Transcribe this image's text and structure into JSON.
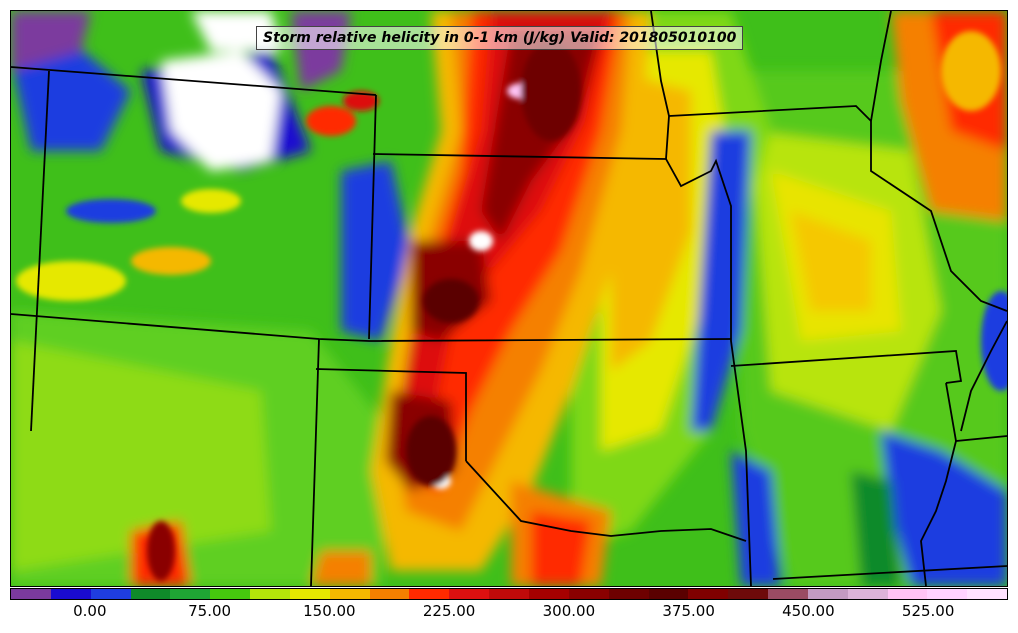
{
  "title": "Storm relative helicity in 0-1 km (J/kg) Valid: 201805010100",
  "colorbar": {
    "colors": [
      "#7b3a9e",
      "#1a0bd0",
      "#1f3de0",
      "#0f8a2a",
      "#1fa534",
      "#46c80e",
      "#b4e40a",
      "#e6e800",
      "#f5b800",
      "#f58000",
      "#ff2a00",
      "#dd1010",
      "#c00a0a",
      "#a50000",
      "#8a0000",
      "#6e0000",
      "#5a0000",
      "#800000",
      "#6e0a0a",
      "#9a4b63",
      "#c49ac2",
      "#ddb3d9",
      "#ffc4f5",
      "#ffd2ff",
      "#ffe2ff"
    ],
    "tick_labels": [
      {
        "label": "0.00",
        "value": 0
      },
      {
        "label": "75.00",
        "value": 75
      },
      {
        "label": "150.00",
        "value": 150
      },
      {
        "label": "225.00",
        "value": 225
      },
      {
        "label": "300.00",
        "value": 300
      },
      {
        "label": "375.00",
        "value": 375
      },
      {
        "label": "450.00",
        "value": 450
      },
      {
        "label": "525.00",
        "value": 525
      }
    ],
    "range": [
      -50,
      575
    ]
  }
}
